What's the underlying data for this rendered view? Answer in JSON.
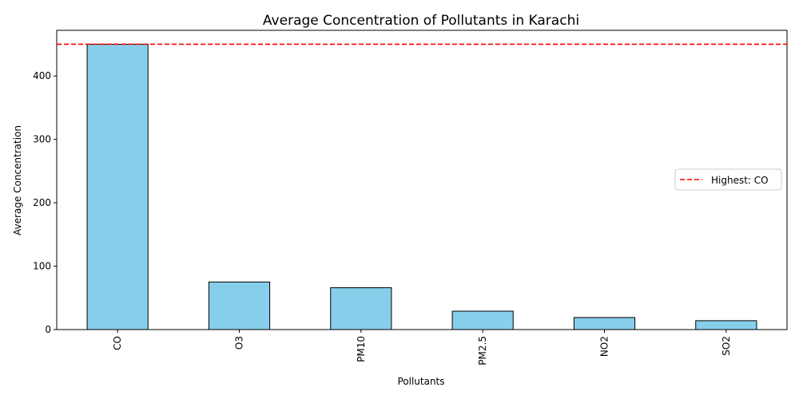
{
  "chart_data": {
    "type": "bar",
    "title": "Average Concentration of Pollutants in Karachi",
    "xlabel": "Pollutants",
    "ylabel": "Average Concentration",
    "categories": [
      "CO",
      "O3",
      "PM10",
      "PM2.5",
      "NO2",
      "SO2"
    ],
    "values": [
      450,
      75,
      66,
      29,
      19,
      14
    ],
    "ylim": [
      0,
      472
    ],
    "yticks": [
      0,
      100,
      200,
      300,
      400
    ],
    "bar_color": "#87ceeb",
    "bar_edge_color": "#000000",
    "reference_line": {
      "value": 450,
      "label": "Highest: CO",
      "color": "#ff0000",
      "style": "dashed"
    },
    "legend_position": "center-right",
    "grid": false
  }
}
